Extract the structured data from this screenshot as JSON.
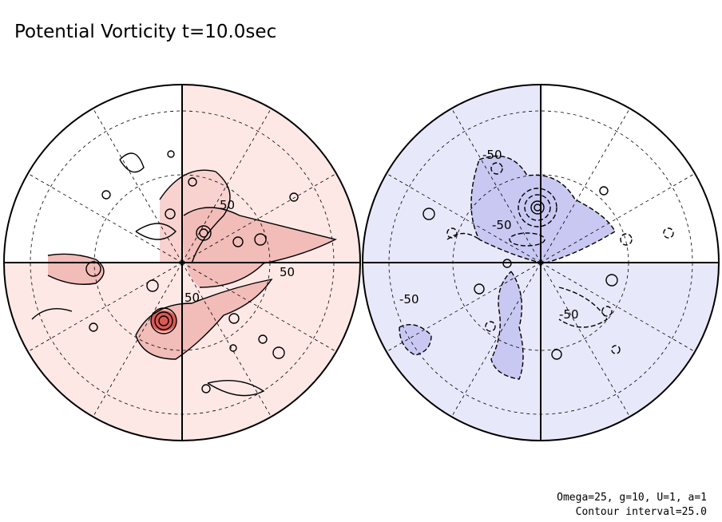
{
  "figure": {
    "title": "Potential Vorticity t=10.0sec",
    "params_line": "Omega=25, g=10, U=1, a=1",
    "interval_line": "Contour interval=25.0",
    "colors": {
      "positive": "#fde8e6",
      "positive_strong": "#f2bcb8",
      "peak": "#d0302a",
      "negative": "#e8e8fb",
      "negative_strong": "#c8c8f2",
      "line": "#000000"
    }
  },
  "hemispheres": [
    {
      "name": "left",
      "sign": "positive",
      "contour_labels": [
        "50",
        "50",
        "50"
      ]
    },
    {
      "name": "right",
      "sign": "negative",
      "contour_labels": [
        "-50",
        "-50",
        "-50",
        "-50"
      ]
    }
  ]
}
